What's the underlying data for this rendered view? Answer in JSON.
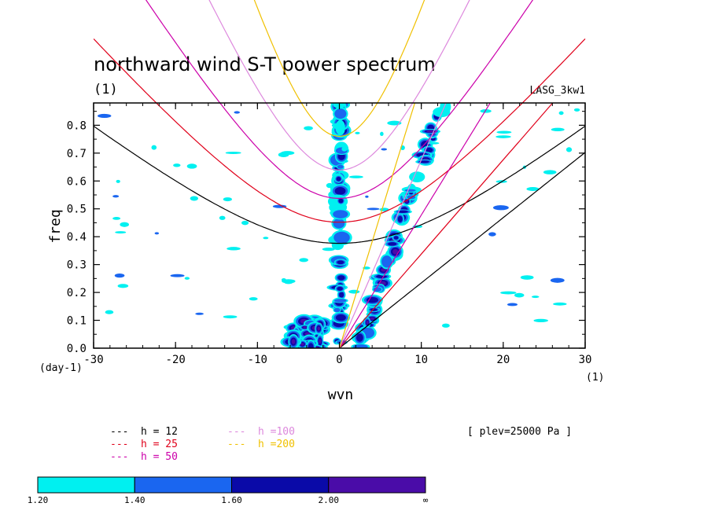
{
  "chart_data": {
    "type": "heatmap",
    "title": "northward wind S-T power spectrum",
    "subtitle": "(1)",
    "source_label": "LASG_3kw1",
    "xlabel": "wvn",
    "ylabel": "freq",
    "x_unit_label": "(1)",
    "y_unit_label": "(day-1)",
    "xlim": [
      -30,
      30
    ],
    "ylim": [
      0,
      0.88
    ],
    "x_ticks": [
      -30,
      -20,
      -10,
      0,
      10,
      20,
      30
    ],
    "x_tick_labels": [
      "-30",
      "-20",
      "-10",
      "0",
      "10",
      "20",
      "30"
    ],
    "y_ticks": [
      0.0,
      0.1,
      0.2,
      0.3,
      0.4,
      0.5,
      0.6,
      0.7,
      0.8
    ],
    "y_tick_labels": [
      "0.0",
      "0.1",
      "0.2",
      "0.3",
      "0.4",
      "0.5",
      "0.6",
      "0.7",
      "0.8"
    ],
    "level_note": "[ plev=25000 Pa ]",
    "dispersion_curves": [
      {
        "label": "h = 12",
        "h": 12,
        "color": "#000000"
      },
      {
        "label": "h = 25",
        "h": 25,
        "color": "#e0001a"
      },
      {
        "label": "h = 50",
        "h": 50,
        "color": "#cc00aa"
      },
      {
        "label": "h =100",
        "h": 100,
        "color": "#dd88dd"
      },
      {
        "label": "h =200",
        "h": 200,
        "color": "#f0c000"
      }
    ],
    "colorbar": {
      "levels": [
        "1.20",
        "1.40",
        "1.60",
        "2.00",
        "∞"
      ],
      "colors": [
        "#00f0f0",
        "#1a66f0",
        "#0a0aa8",
        "#4a0ca8"
      ]
    },
    "power_features": [
      {
        "wvn_min": -0.3,
        "wvn_max": 0.3,
        "freq_min": 0.02,
        "freq_max": 0.88,
        "level": 2,
        "note": "zonal-mean column"
      },
      {
        "wvn_min": 2,
        "wvn_max": 13,
        "freq_min": 0.0,
        "freq_max": 0.85,
        "level": 3,
        "note": "eastward mixed Rossby-gravity / inertia-gravity band"
      },
      {
        "wvn_min": -6,
        "wvn_max": -2,
        "freq_min": 0.0,
        "freq_max": 0.1,
        "level": 3,
        "note": "westward low-frequency band"
      }
    ]
  }
}
